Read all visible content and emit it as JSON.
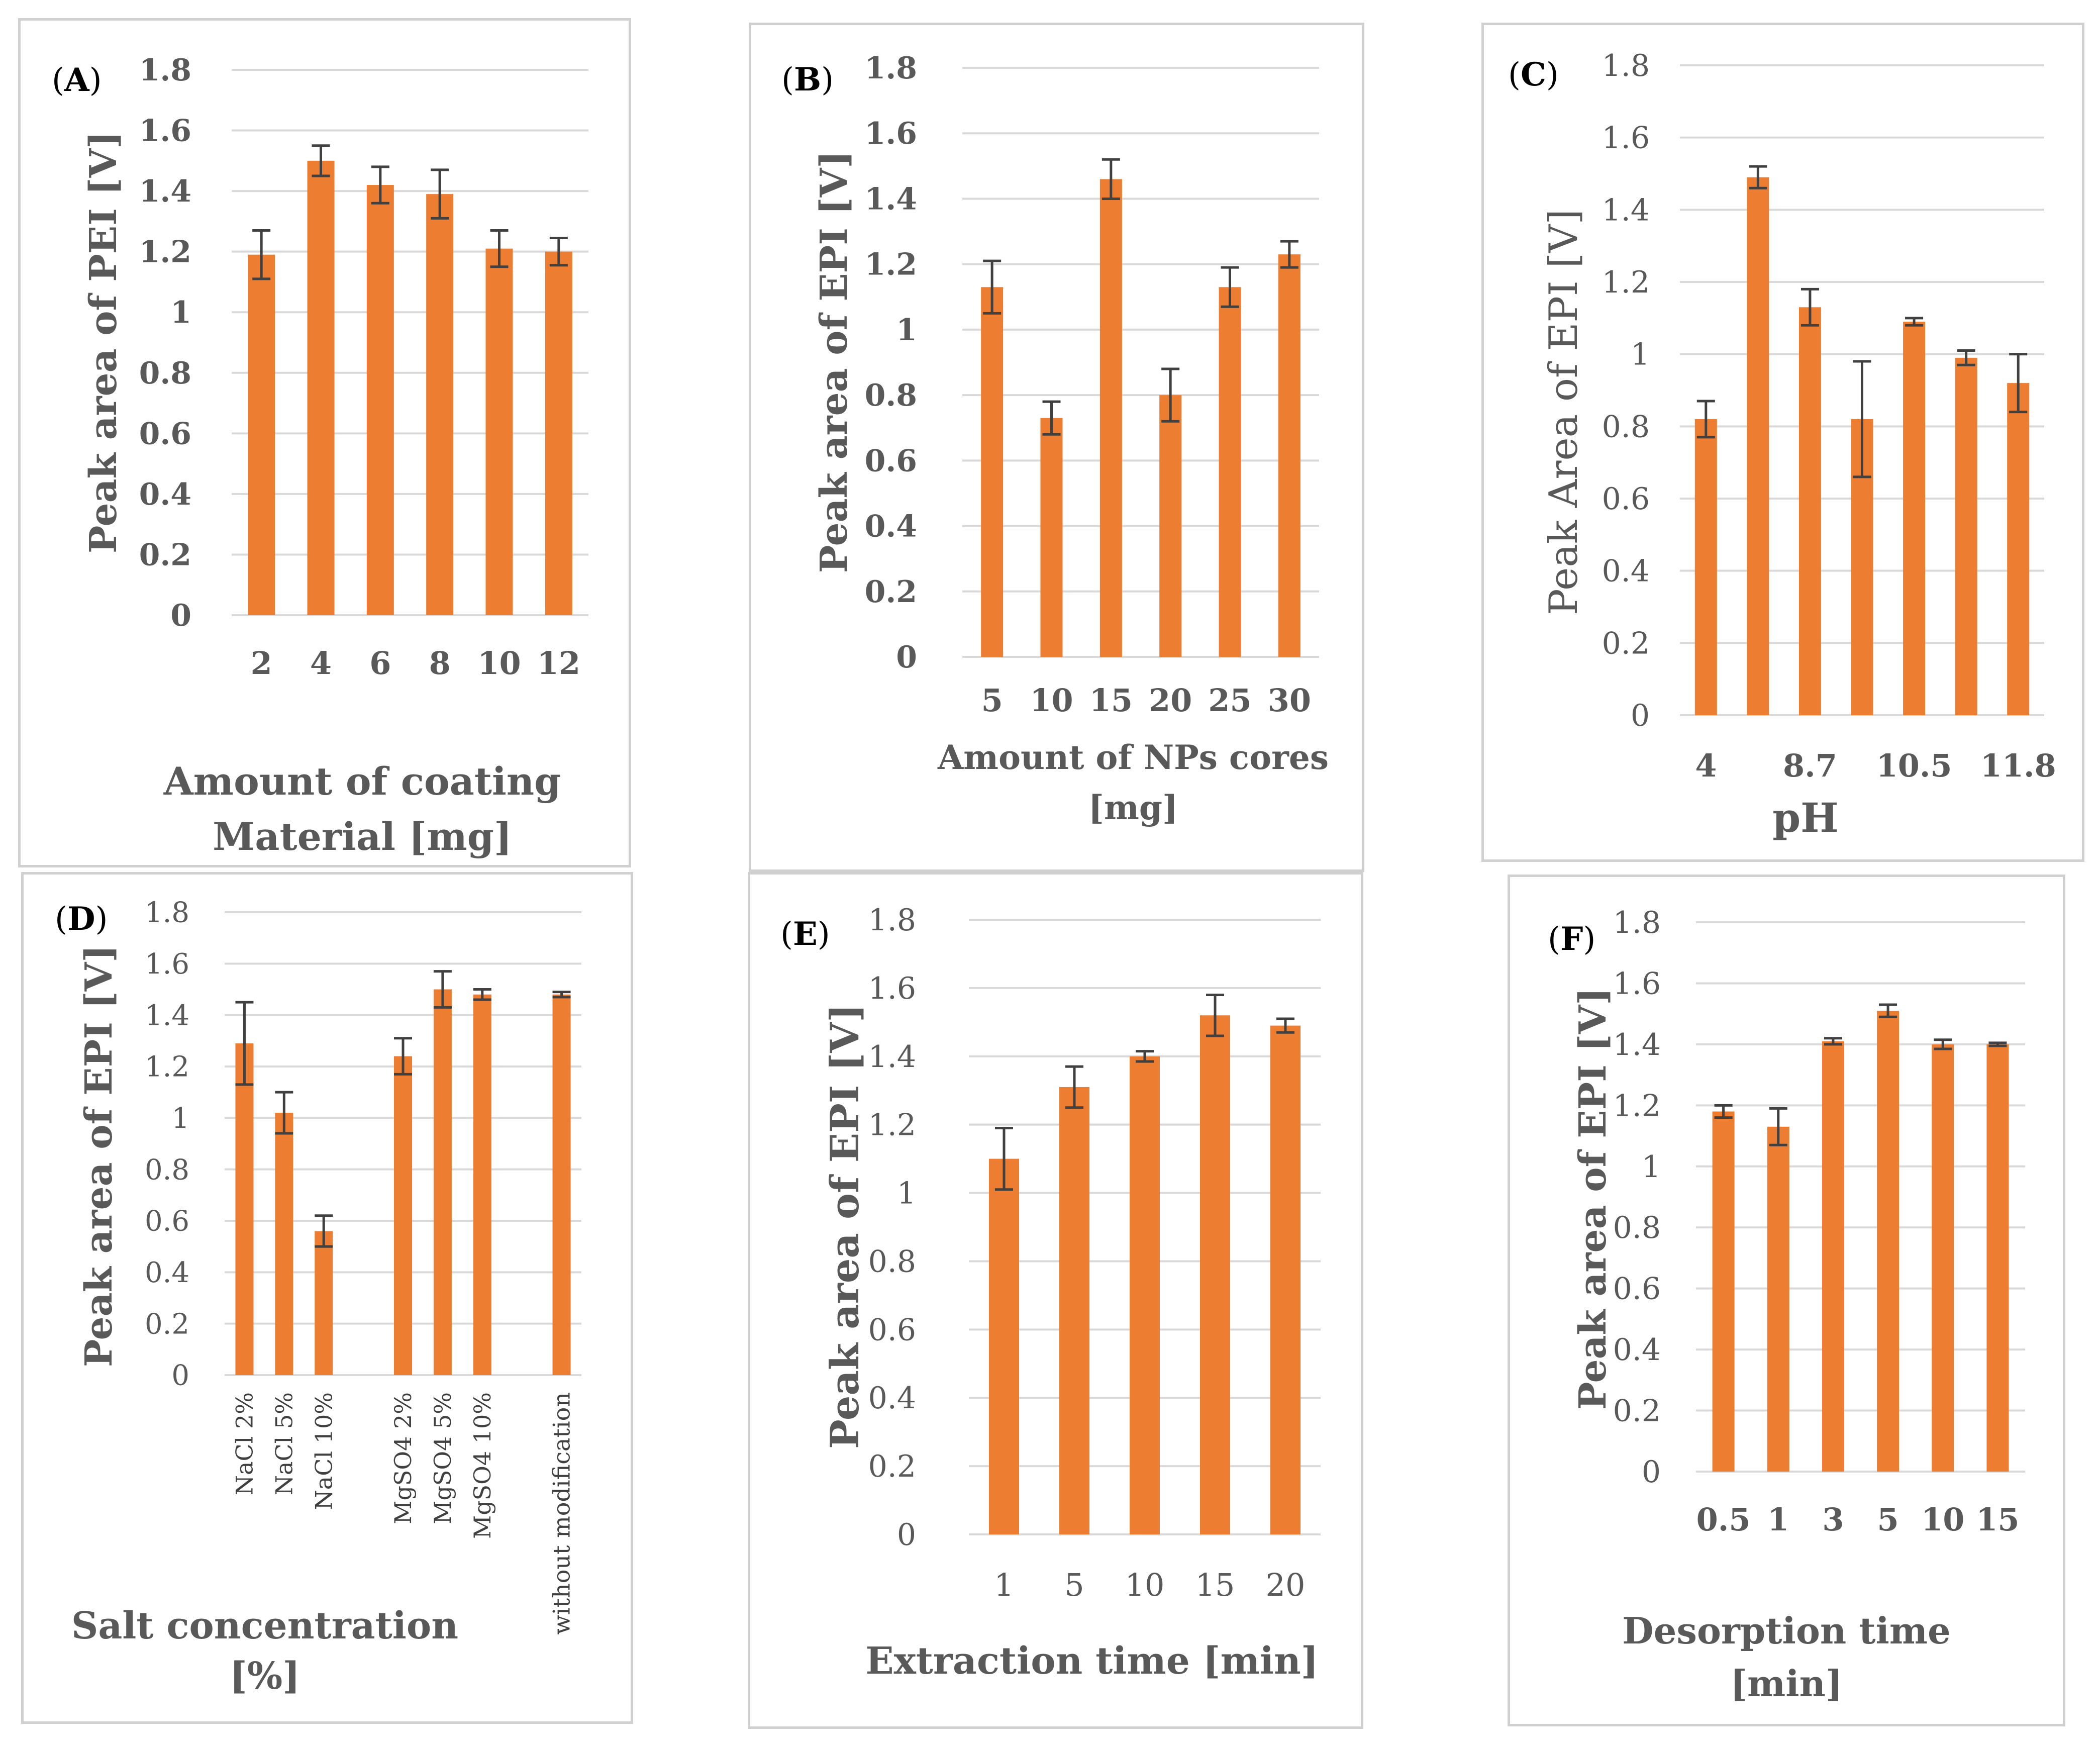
{
  "chart_data": [
    {
      "id": "A",
      "type": "bar",
      "panel_label": "(A)",
      "ylabel": "Peak area of PEI [V]",
      "xlabel": [
        "Amount of coating",
        "Material [mg]"
      ],
      "ylim": [
        0,
        1.8
      ],
      "yticks": [
        "0",
        "0.2",
        "0.4",
        "0.6",
        "0.8",
        "1",
        "1.2",
        "1.4",
        "1.6",
        "1.8"
      ],
      "categories": [
        "2",
        "4",
        "6",
        "8",
        "10",
        "12"
      ],
      "values": [
        1.19,
        1.5,
        1.42,
        1.39,
        1.21,
        1.2
      ],
      "errors": [
        0.08,
        0.05,
        0.06,
        0.08,
        0.06,
        0.045
      ],
      "color": "#ED7D31",
      "grid": true
    },
    {
      "id": "B",
      "type": "bar",
      "panel_label": "(B)",
      "ylabel": "Peak area of EPI [V]",
      "xlabel": [
        "Amount of NPs cores",
        "[mg]"
      ],
      "ylim": [
        0,
        1.8
      ],
      "yticks": [
        "0",
        "0.2",
        "0.4",
        "0.6",
        "0.8",
        "1",
        "1.2",
        "1.4",
        "1.6",
        "1.8"
      ],
      "categories": [
        "5",
        "10",
        "15",
        "20",
        "25",
        "30"
      ],
      "values": [
        1.13,
        0.73,
        1.46,
        0.8,
        1.13,
        1.23
      ],
      "errors": [
        0.08,
        0.05,
        0.06,
        0.08,
        0.06,
        0.04
      ],
      "color": "#ED7D31",
      "grid": true
    },
    {
      "id": "C",
      "type": "bar",
      "panel_label": "(C)",
      "ylabel": "Peak Area of EPI [V]",
      "xlabel": [
        "pH"
      ],
      "ylim": [
        0,
        1.8
      ],
      "yticks": [
        "0",
        "0.2",
        "0.4",
        "0.6",
        "0.8",
        "1",
        "1.2",
        "1.4",
        "1.6",
        "1.8"
      ],
      "categories": [
        "4",
        "",
        "8.7",
        "",
        "10.5",
        "",
        "11.8"
      ],
      "values": [
        0.82,
        1.49,
        1.13,
        0.82,
        1.09,
        0.99,
        0.92
      ],
      "errors": [
        0.05,
        0.03,
        0.05,
        0.16,
        0.01,
        0.02,
        0.08
      ],
      "color": "#ED7D31",
      "grid": true
    },
    {
      "id": "D",
      "type": "bar",
      "panel_label": "(D)",
      "ylabel": "Peak area of EPI [V]",
      "xlabel": [
        "Salt concentration",
        "[%]"
      ],
      "ylim": [
        0,
        1.8
      ],
      "yticks": [
        "0",
        "0.2",
        "0.4",
        "0.6",
        "0.8",
        "1",
        "1.2",
        "1.4",
        "1.6",
        "1.8"
      ],
      "categories": [
        "NaCl 2%",
        "NaCl 5%",
        "NaCl 10%",
        "",
        "MgSO4 2%",
        "MgSO4 5%",
        "MgSO4 10%",
        "",
        "without modification"
      ],
      "values": [
        1.29,
        1.02,
        0.56,
        null,
        1.24,
        1.5,
        1.48,
        null,
        1.48
      ],
      "errors": [
        0.16,
        0.08,
        0.06,
        null,
        0.07,
        0.07,
        0.02,
        null,
        0.01
      ],
      "color": "#ED7D31",
      "grid": true
    },
    {
      "id": "E",
      "type": "bar",
      "panel_label": "(E)",
      "ylabel": "Peak area of EPI [V]",
      "xlabel": [
        "Extraction time [min]"
      ],
      "ylim": [
        0,
        1.8
      ],
      "yticks": [
        "0",
        "0.2",
        "0.4",
        "0.6",
        "0.8",
        "1",
        "1.2",
        "1.4",
        "1.6",
        "1.8"
      ],
      "categories": [
        "1",
        "5",
        "10",
        "15",
        "20"
      ],
      "values": [
        1.1,
        1.31,
        1.4,
        1.52,
        1.49
      ],
      "errors": [
        0.09,
        0.06,
        0.015,
        0.06,
        0.02
      ],
      "color": "#ED7D31",
      "grid": true
    },
    {
      "id": "F",
      "type": "bar",
      "panel_label": "(F)",
      "ylabel": "Peak area of EPI [V]",
      "xlabel": [
        "Desorption time",
        "[min]"
      ],
      "ylim": [
        0,
        1.8
      ],
      "yticks": [
        "0",
        "0.2",
        "0.4",
        "0.6",
        "0.8",
        "1",
        "1.2",
        "1.4",
        "1.6",
        "1.8"
      ],
      "categories": [
        "0.5",
        "1",
        "3",
        "5",
        "10",
        "15"
      ],
      "values": [
        1.18,
        1.13,
        1.41,
        1.51,
        1.4,
        1.4
      ],
      "errors": [
        0.02,
        0.06,
        0.01,
        0.02,
        0.015,
        0.005
      ],
      "color": "#ED7D31",
      "grid": true
    }
  ]
}
